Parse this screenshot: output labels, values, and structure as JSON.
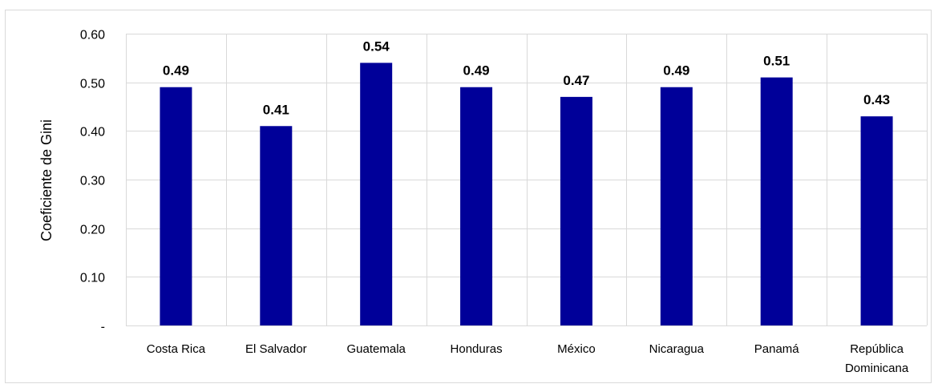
{
  "chart_data": {
    "type": "bar",
    "title": "",
    "xlabel": "",
    "ylabel": "Coeficiente de Gini",
    "categories": [
      "Costa Rica",
      "El Salvador",
      "Guatemala",
      "Honduras",
      "México",
      "Nicaragua",
      "Panamá",
      "República Dominicana"
    ],
    "category_lines": [
      [
        "Costa Rica"
      ],
      [
        "El Salvador"
      ],
      [
        "Guatemala"
      ],
      [
        "Honduras"
      ],
      [
        "México"
      ],
      [
        "Nicaragua"
      ],
      [
        "Panamá"
      ],
      [
        "República",
        "Dominicana"
      ]
    ],
    "values": [
      0.49,
      0.41,
      0.54,
      0.49,
      0.47,
      0.49,
      0.51,
      0.43
    ],
    "data_labels": [
      "0.49",
      "0.41",
      "0.54",
      "0.49",
      "0.47",
      "0.49",
      "0.51",
      "0.43"
    ],
    "ylim": [
      0,
      0.6
    ],
    "y_ticks": [
      0,
      0.1,
      0.2,
      0.3,
      0.4,
      0.5,
      0.6
    ],
    "y_tick_labels": [
      "-",
      "0.10",
      "0.20",
      "0.30",
      "0.40",
      "0.50",
      "0.60"
    ],
    "grid": true,
    "legend": "none",
    "bar_color": "#000099",
    "grid_color": "#d9d9d9"
  }
}
